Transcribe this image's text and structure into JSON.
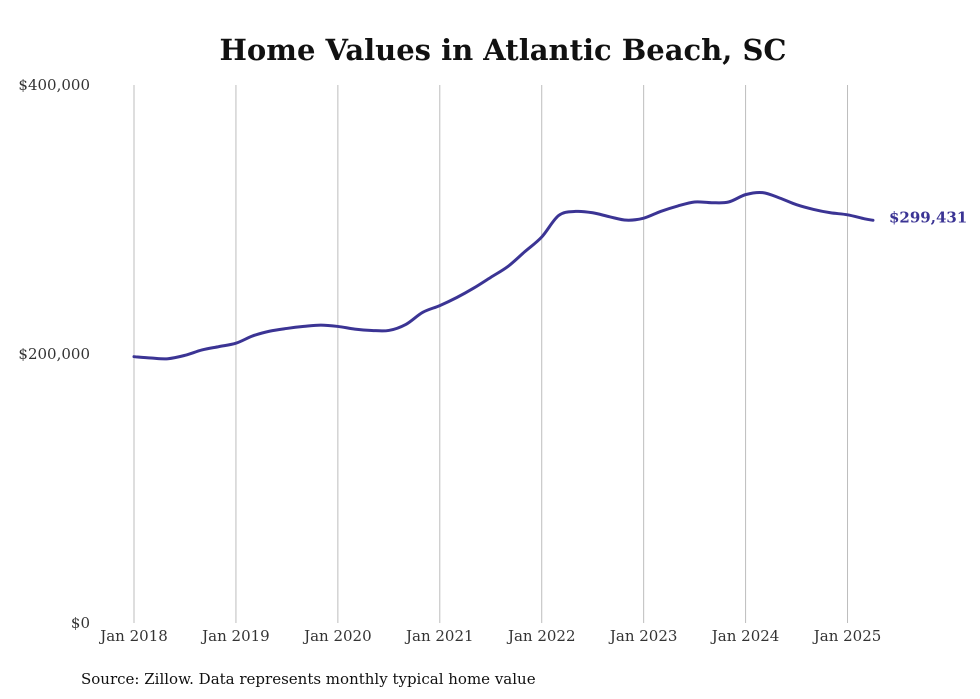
{
  "chart_data": {
    "type": "line",
    "title": "Home Values in Atlantic Beach, SC",
    "source": "Source: Zillow. Data represents monthly typical home value",
    "xlabel": "",
    "ylabel": "",
    "ylim": [
      0,
      400000
    ],
    "y_ticks": [
      {
        "value": 0,
        "label": "$0"
      },
      {
        "value": 200000,
        "label": "$200,000"
      },
      {
        "value": 400000,
        "label": "$400,000"
      }
    ],
    "x_ticks": [
      {
        "value": 2018.0,
        "label": "Jan 2018"
      },
      {
        "value": 2019.0,
        "label": "Jan 2019"
      },
      {
        "value": 2020.0,
        "label": "Jan 2020"
      },
      {
        "value": 2021.0,
        "label": "Jan 2021"
      },
      {
        "value": 2022.0,
        "label": "Jan 2022"
      },
      {
        "value": 2023.0,
        "label": "Jan 2023"
      },
      {
        "value": 2024.0,
        "label": "Jan 2024"
      },
      {
        "value": 2025.0,
        "label": "Jan 2025"
      }
    ],
    "xlim": [
      2018.0,
      2025.25
    ],
    "grid": "vertical",
    "line_color": "#3b3494",
    "end_label": "$299,431",
    "series": [
      {
        "x": [
          2018.0,
          2018.167,
          2018.333,
          2018.5,
          2018.667,
          2018.833,
          2019.0,
          2019.167,
          2019.333,
          2019.5,
          2019.667,
          2019.833,
          2020.0,
          2020.167,
          2020.333,
          2020.5,
          2020.667,
          2020.833,
          2021.0,
          2021.167,
          2021.333,
          2021.5,
          2021.667,
          2021.833,
          2022.0,
          2022.167,
          2022.333,
          2022.5,
          2022.667,
          2022.833,
          2023.0,
          2023.167,
          2023.333,
          2023.5,
          2023.667,
          2023.833,
          2024.0,
          2024.167,
          2024.333,
          2024.5,
          2024.667,
          2024.833,
          2025.0,
          2025.167,
          2025.25
        ],
        "values": [
          198000,
          197000,
          196500,
          199000,
          203000,
          205500,
          208000,
          213500,
          217000,
          219000,
          220500,
          221500,
          220500,
          218500,
          217500,
          217500,
          222000,
          231000,
          236000,
          242000,
          249000,
          257000,
          265000,
          276000,
          287000,
          303000,
          306000,
          305000,
          302000,
          299500,
          301000,
          306000,
          310000,
          313000,
          312500,
          313000,
          318500,
          320000,
          316000,
          311000,
          307500,
          305000,
          303500,
          300500,
          299431
        ]
      }
    ]
  }
}
